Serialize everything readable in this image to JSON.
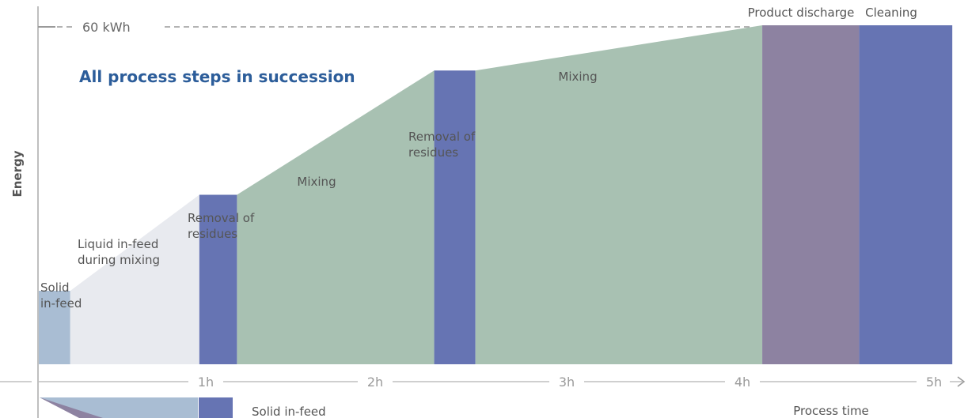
{
  "chart_data": {
    "type": "area",
    "subtitle": "All process steps in succession",
    "ylabel": "Energy",
    "xlabel": "Process time",
    "y_reference_label": "60 kWh",
    "y_reference_value": 60,
    "ylim": [
      0,
      60
    ],
    "xlim": [
      0,
      5
    ],
    "x_ticks": [
      "1h",
      "2h",
      "3h",
      "4h",
      "5h"
    ],
    "grid": false,
    "colors": {
      "solid_infeed": "#a9bdd3",
      "liquid_infeed": "#e8eaef",
      "mixing": "#a8c1b2",
      "removal": "#6674b3",
      "discharge": "#8d82a1",
      "cleaning": "#6674b3",
      "subtitle": "#2c5d9a",
      "axis": "#bfbfbf"
    },
    "segments": [
      {
        "label": "Solid\nin-feed",
        "step": "solid_infeed",
        "x_start": 0.0,
        "x_end": 0.18,
        "y_start": 13,
        "y_end": 13
      },
      {
        "label": "Liquid in-feed\nduring mixing",
        "step": "liquid_infeed",
        "x_start": 0.18,
        "x_end": 0.9,
        "y_start": 13,
        "y_end": 30
      },
      {
        "label": "Removal of\nresidues",
        "step": "removal",
        "x_start": 0.9,
        "x_end": 1.11,
        "y_start": 30,
        "y_end": 30
      },
      {
        "label": "Mixing",
        "step": "mixing",
        "x_start": 1.11,
        "x_end": 2.21,
        "y_start": 30,
        "y_end": 52
      },
      {
        "label": "Removal of\nresidues",
        "step": "removal",
        "x_start": 2.21,
        "x_end": 2.44,
        "y_start": 52,
        "y_end": 52
      },
      {
        "label": "Mixing",
        "step": "mixing",
        "x_start": 2.44,
        "x_end": 4.04,
        "y_start": 52,
        "y_end": 60
      },
      {
        "label": "Product discharge",
        "step": "discharge",
        "x_start": 4.04,
        "x_end": 4.58,
        "y_start": 60,
        "y_end": 60
      },
      {
        "label": "Cleaning",
        "step": "cleaning",
        "x_start": 4.58,
        "x_end": 5.1,
        "y_start": 60,
        "y_end": 60
      }
    ]
  },
  "lower_panel": {
    "label": "Solid in-feed"
  }
}
